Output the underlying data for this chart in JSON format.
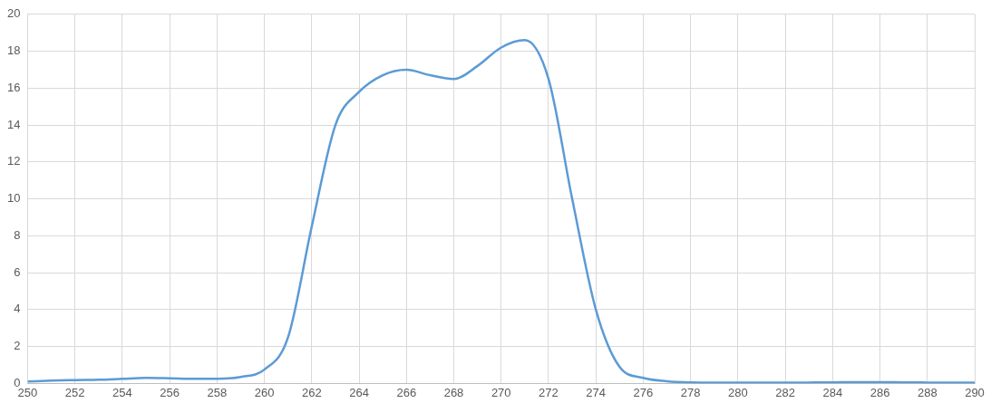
{
  "chart_data": {
    "type": "line",
    "x": [
      250,
      251,
      252,
      253,
      254,
      255,
      256,
      257,
      258,
      259,
      260,
      261,
      262,
      263,
      264,
      265,
      266,
      267,
      268,
      269,
      270,
      271,
      272,
      273,
      274,
      275,
      276,
      277,
      278,
      279,
      280,
      281,
      282,
      283,
      284,
      285,
      286,
      287,
      288,
      289,
      290
    ],
    "series": [
      {
        "color": "#5b9bd5",
        "values": [
          0.1,
          0.15,
          0.18,
          0.2,
          0.25,
          0.3,
          0.28,
          0.25,
          0.25,
          0.35,
          0.75,
          2.5,
          8.5,
          14,
          15.8,
          16.7,
          17,
          16.7,
          16.5,
          17.2,
          18.2,
          18.6,
          16.5,
          10,
          4,
          0.9,
          0.3,
          0.12,
          0.06,
          0.05,
          0.05,
          0.05,
          0.05,
          0.05,
          0.06,
          0.07,
          0.07,
          0.06,
          0.05,
          0.05,
          0.05
        ]
      }
    ],
    "xlim": [
      250,
      290
    ],
    "xticks": [
      250,
      252,
      254,
      256,
      258,
      260,
      262,
      264,
      266,
      268,
      270,
      272,
      274,
      276,
      278,
      280,
      282,
      284,
      286,
      288,
      290
    ],
    "ylim": [
      0,
      20
    ],
    "yticks": [
      0,
      2,
      4,
      6,
      8,
      10,
      12,
      14,
      16,
      18,
      20
    ],
    "grid": true,
    "legend": false,
    "marker": "none",
    "line_style": "solid"
  }
}
